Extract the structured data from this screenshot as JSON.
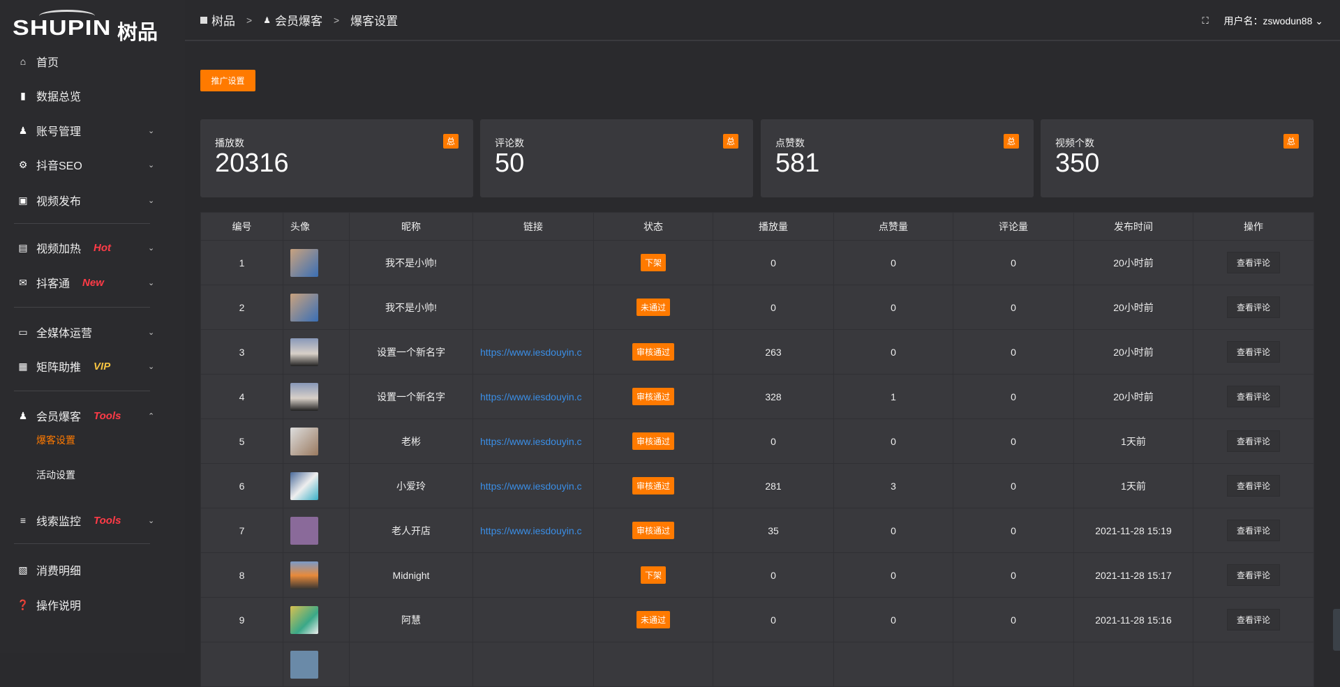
{
  "logo": {
    "en": "SHUPIN",
    "cn": "树品"
  },
  "sidebar": {
    "items": [
      {
        "icon": "home-icon",
        "label": "首页"
      },
      {
        "icon": "bar-chart-icon",
        "label": "数据总览"
      },
      {
        "icon": "user-icon",
        "label": "账号管理",
        "chevron": "down"
      },
      {
        "icon": "gear-icon",
        "label": "抖音SEO",
        "chevron": "down"
      },
      {
        "icon": "video-camera-icon",
        "label": "视频发布",
        "chevron": "down"
      },
      {
        "icon": "billboard-icon",
        "label": "视频加热",
        "tag": "Hot",
        "chevron": "down"
      },
      {
        "icon": "chat-icon",
        "label": "抖客通",
        "tag": "New",
        "chevron": "down"
      },
      {
        "icon": "monitor-icon",
        "label": "全媒体运营",
        "chevron": "down"
      },
      {
        "icon": "grid-icon",
        "label": "矩阵助推",
        "tag": "VIP",
        "chevron": "down"
      },
      {
        "icon": "user-icon",
        "label": "会员爆客",
        "tag": "Tools",
        "chevron": "up"
      },
      {
        "icon": "sliders-icon",
        "label": "线索监控",
        "tag": "Tools",
        "chevron": "down"
      },
      {
        "icon": "receipt-icon",
        "label": "消费明细"
      },
      {
        "icon": "question-icon",
        "label": "操作说明"
      }
    ],
    "sub": [
      {
        "label": "爆客设置",
        "active": true
      },
      {
        "label": "活动设置"
      }
    ],
    "tag_colors": {
      "Hot": "#ff3b47",
      "New": "#ff3b47",
      "VIP": "#f5c341",
      "Tools": "#ff3b47"
    }
  },
  "breadcrumb": [
    "树品",
    "会员爆客",
    "爆客设置"
  ],
  "user": {
    "label": "用户名：zswodun88"
  },
  "promo_button": "推广设置",
  "cards": [
    {
      "label": "播放数",
      "value": "20316",
      "badge": "总"
    },
    {
      "label": "评论数",
      "value": "50",
      "badge": "总"
    },
    {
      "label": "点赞数",
      "value": "581",
      "badge": "总"
    },
    {
      "label": "视频个数",
      "value": "350",
      "badge": "总"
    }
  ],
  "table": {
    "headers": [
      "编号",
      "头像",
      "昵称",
      "链接",
      "状态",
      "播放量",
      "点赞量",
      "评论量",
      "发布时间",
      "操作"
    ],
    "rows": [
      {
        "id": "1",
        "nick": "我不是小帅!",
        "link": "",
        "status": "下架",
        "plays": "0",
        "likes": "0",
        "comments": "0",
        "time": "20小时前",
        "op": "查看评论"
      },
      {
        "id": "2",
        "nick": "我不是小帅!",
        "link": "",
        "status": "未通过",
        "plays": "0",
        "likes": "0",
        "comments": "0",
        "time": "20小时前",
        "op": "查看评论"
      },
      {
        "id": "3",
        "nick": "设置一个新名字",
        "link": "https://www.iesdouyin.c",
        "status": "审核通过",
        "plays": "263",
        "likes": "0",
        "comments": "0",
        "time": "20小时前",
        "op": "查看评论"
      },
      {
        "id": "4",
        "nick": "设置一个新名字",
        "link": "https://www.iesdouyin.c",
        "status": "审核通过",
        "plays": "328",
        "likes": "1",
        "comments": "0",
        "time": "20小时前",
        "op": "查看评论"
      },
      {
        "id": "5",
        "nick": "老彬",
        "link": "https://www.iesdouyin.c",
        "status": "审核通过",
        "plays": "0",
        "likes": "0",
        "comments": "0",
        "time": "1天前",
        "op": "查看评论"
      },
      {
        "id": "6",
        "nick": "小爱玲",
        "link": "https://www.iesdouyin.c",
        "status": "审核通过",
        "plays": "281",
        "likes": "3",
        "comments": "0",
        "time": "1天前",
        "op": "查看评论"
      },
      {
        "id": "7",
        "nick": "老人开店",
        "link": "https://www.iesdouyin.c",
        "status": "审核通过",
        "plays": "35",
        "likes": "0",
        "comments": "0",
        "time": "2021-11-28 15:19",
        "op": "查看评论"
      },
      {
        "id": "8",
        "nick": "Midnight",
        "link": "",
        "status": "下架",
        "plays": "0",
        "likes": "0",
        "comments": "0",
        "time": "2021-11-28 15:17",
        "op": "查看评论"
      },
      {
        "id": "9",
        "nick": "阿慧",
        "link": "",
        "status": "未通过",
        "plays": "0",
        "likes": "0",
        "comments": "0",
        "time": "2021-11-28 15:16",
        "op": "查看评论"
      }
    ]
  },
  "colors": {
    "accent": "#ff7a00",
    "link": "#3a8ee6"
  }
}
